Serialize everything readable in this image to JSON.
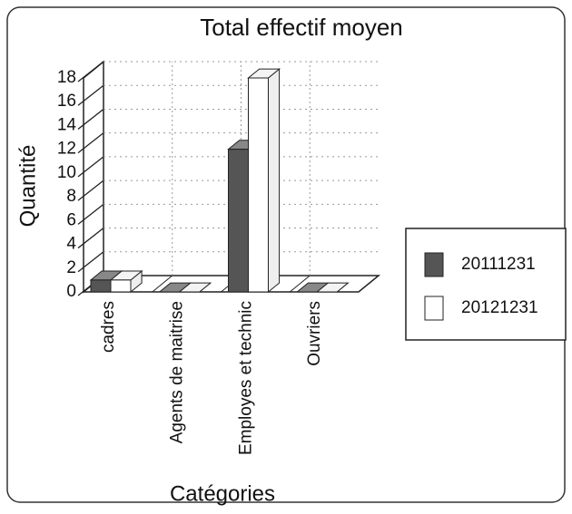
{
  "chart_data": {
    "type": "bar3d",
    "title": "Total effectif moyen",
    "y_label": "Quantité",
    "x_label": "Catégories",
    "categories": [
      "cadres",
      "Agents de maitrise",
      "Employes et technic",
      "Ouvriers"
    ],
    "series": [
      {
        "name": "20111231",
        "color": "#555555",
        "values": [
          1,
          0,
          12,
          0
        ]
      },
      {
        "name": "20121231",
        "color": "#ffffff",
        "values": [
          1,
          0,
          18,
          0
        ]
      }
    ],
    "ylim": [
      0,
      18
    ],
    "yticks": [
      0,
      2,
      4,
      6,
      8,
      10,
      12,
      14,
      16,
      18
    ],
    "grid": true,
    "legend": "right"
  }
}
